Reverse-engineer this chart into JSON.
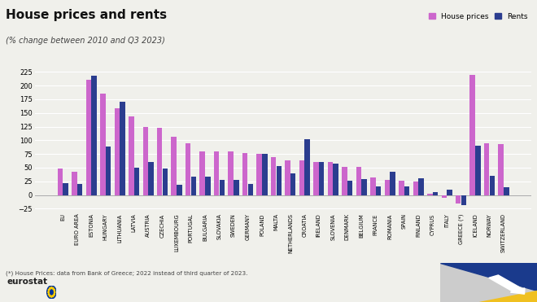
{
  "title": "House prices and rents",
  "subtitle": "(% change between 2010 and Q3 2023)",
  "legend_labels": [
    "House prices",
    "Rents"
  ],
  "house_color": "#cc66cc",
  "rent_color": "#2b3d8f",
  "background_color": "#f0f0eb",
  "ylim": [
    -30,
    235
  ],
  "yticks": [
    -25,
    0,
    25,
    50,
    75,
    100,
    125,
    150,
    175,
    200,
    225
  ],
  "footnote": "(*) House Prices: data from Bank of Greece; 2022 instead of third quarter of 2023.",
  "categories": [
    "EU",
    "EURO AREA",
    "ESTONIA",
    "HUNGARY",
    "LITHUANIA",
    "LATVIA",
    "AUSTRIA",
    "CZECHIA",
    "LUXEMBOURG",
    "PORTUGAL",
    "BULGARIA",
    "SLOVAKIA",
    "SWEDEN",
    "GERMANY",
    "POLAND",
    "MALTA",
    "NETHERLANDS",
    "CROATIA",
    "IRELAND",
    "SLOVENIA",
    "DENMARK",
    "BELGIUM",
    "FRANCE",
    "ROMANIA",
    "SPAIN",
    "FINLAND",
    "CYPRUS",
    "ITALY",
    "GREECE (*)",
    "ICELAND",
    "NORWAY",
    "SWITZERLAND"
  ],
  "house_prices": [
    49,
    43,
    210,
    185,
    158,
    143,
    124,
    123,
    107,
    94,
    80,
    80,
    80,
    76,
    75,
    70,
    64,
    63,
    60,
    60,
    52,
    51,
    32,
    28,
    26,
    25,
    2,
    -5,
    -15,
    220,
    95,
    93
  ],
  "rents": [
    22,
    20,
    218,
    88,
    170,
    50,
    60,
    48,
    19,
    34,
    34,
    28,
    27,
    20,
    75,
    53,
    40,
    102,
    60,
    58,
    26,
    29,
    16,
    42,
    16,
    30,
    5,
    10,
    -18,
    90,
    35,
    14
  ]
}
